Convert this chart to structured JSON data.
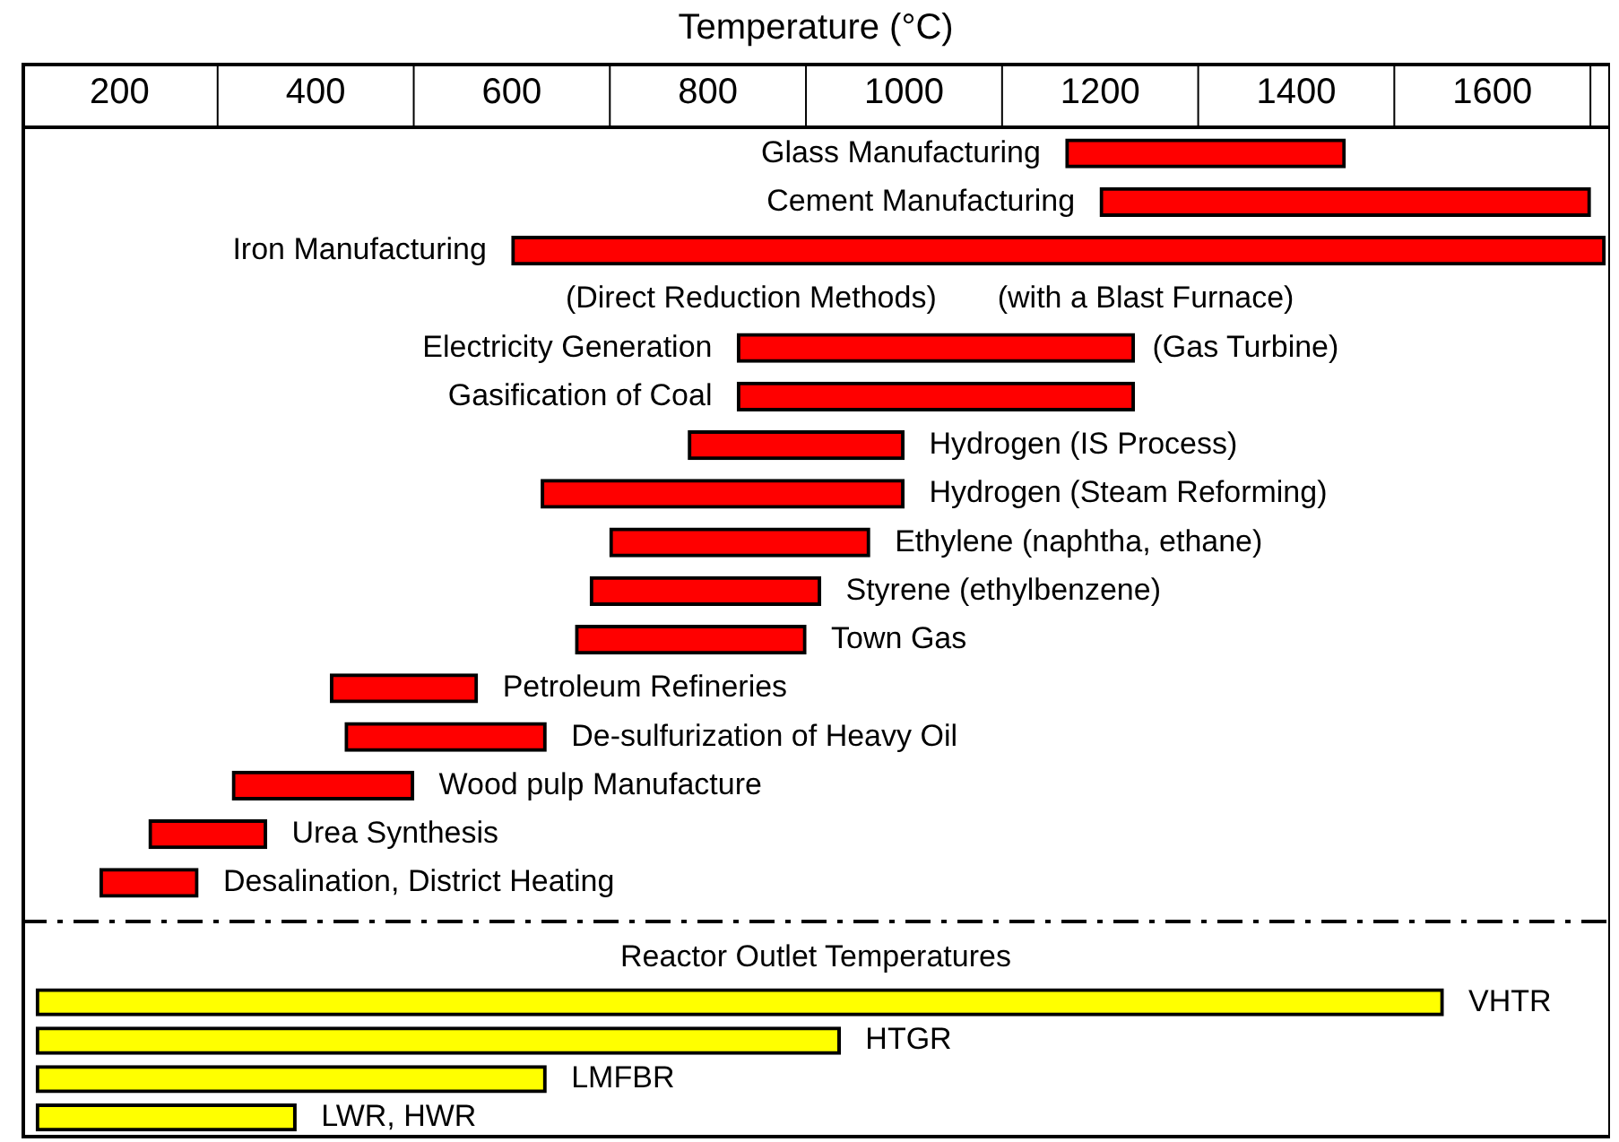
{
  "chart_data": [
    {
      "type": "bar",
      "orientation": "horizontal",
      "xlabel": "Temperature (°C)",
      "xlim": [
        100,
        1720
      ],
      "xticks": [
        200,
        400,
        600,
        800,
        1000,
        1200,
        1400,
        1600
      ],
      "categories": [
        "Glass Manufacturing",
        "Cement Manufacturing",
        "Iron Manufacturing",
        null,
        "Electricity Generation",
        "Gasification of Coal",
        "Hydrogen (IS Process)",
        "Hydrogen (Steam Reforming)",
        "Ethylene (naphtha, ethane)",
        "Styrene (ethylbenzene)",
        "Town Gas",
        "Petroleum Refineries",
        "De-sulfurization of Heavy Oil",
        "Wood pulp Manufacture",
        "Urea Synthesis",
        "Desalination, District Heating"
      ],
      "base": [
        1165,
        1200,
        600,
        null,
        830,
        830,
        780,
        630,
        700,
        680,
        665,
        415,
        430,
        315,
        230,
        180
      ],
      "values": [
        285,
        500,
        1115,
        null,
        405,
        405,
        220,
        370,
        265,
        235,
        235,
        150,
        205,
        185,
        120,
        100
      ],
      "colors": [
        "#ff0000",
        "#ff0000",
        "#ff0000",
        null,
        "#ff0000",
        "#ff0000",
        "#ff0000",
        "#ff0000",
        "#ff0000",
        "#ff0000",
        "#ff0000",
        "#ff0000",
        "#ff0000",
        "#ff0000",
        "#ff0000",
        "#ff0000"
      ],
      "annotations": [
        "(Direct Reduction Methods)",
        "(with a Blast Furnace)",
        {
          "text": "(Gas Turbine)",
          "x": 1235,
          "y": "Electricity Generation"
        }
      ]
    },
    {
      "type": "bar",
      "orientation": "horizontal",
      "title": "Reactor Outlet Temperatures",
      "xlim": [
        100,
        1720
      ],
      "xticks": [
        200,
        400,
        600,
        800,
        1000,
        1200,
        1400,
        1600
      ],
      "tick_labels": "y",
      "categories": [
        "VHTR",
        "HTGR",
        "LMFBR",
        "LWR, HWR"
      ],
      "base": [
        115,
        115,
        115,
        115
      ],
      "values": [
        1435,
        820,
        520,
        265
      ],
      "colors": [
        "#ffff00",
        "#ffff00",
        "#ffff00",
        "#ffff00"
      ]
    }
  ]
}
